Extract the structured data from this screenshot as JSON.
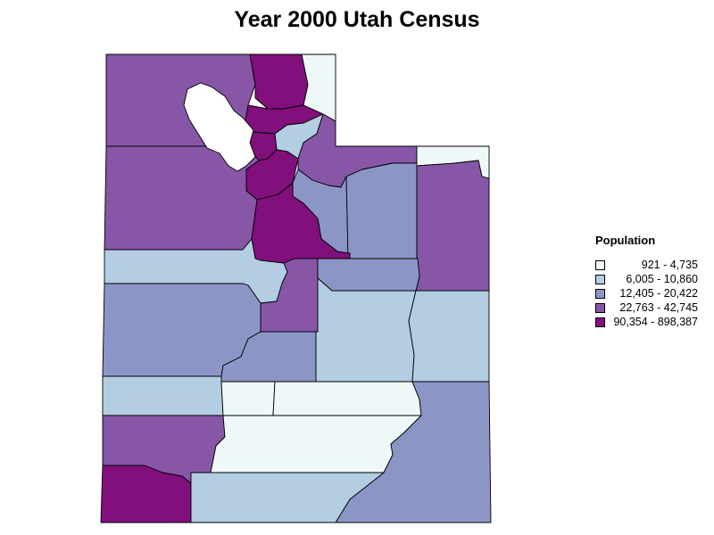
{
  "title": "Year 2000 Utah Census",
  "legend": {
    "title": "Population",
    "classes": [
      {
        "label": "921 - 4,735",
        "color": "#eef8f8"
      },
      {
        "label": "6,005 - 10,860",
        "color": "#b3cde2"
      },
      {
        "label": "12,405 - 20,422",
        "color": "#8c96c6"
      },
      {
        "label": "22,763 - 42,745",
        "color": "#8856a7"
      },
      {
        "label": "90,354 - 898,387",
        "color": "#810f7c"
      }
    ]
  },
  "regions": {
    "box_elder": 3,
    "cache": 4,
    "rich": 0,
    "weber": 4,
    "morgan": 1,
    "davis": 4,
    "salt_lake": 4,
    "summit": 3,
    "daggett": 0,
    "tooele": 3,
    "wasatch": 2,
    "duchesne": 2,
    "uintah": 3,
    "utah": 4,
    "juab": 1,
    "sanpete": 3,
    "carbon": 2,
    "millard": 2,
    "sevier": 2,
    "emery": 1,
    "grand": 1,
    "beaver": 1,
    "piute": 0,
    "wayne": 0,
    "iron": 3,
    "garfield": 0,
    "san_juan": 2,
    "washington": 4,
    "kane": 1
  }
}
